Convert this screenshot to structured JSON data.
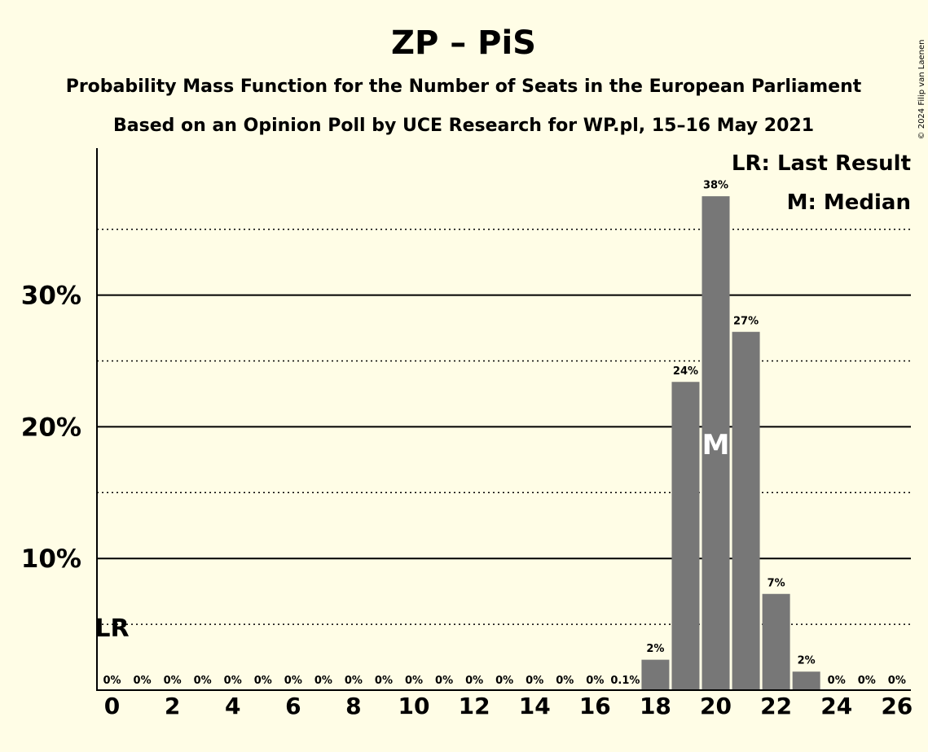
{
  "chart_data": {
    "type": "bar",
    "title": "ZP – PiS",
    "subtitle1": "Probability Mass Function for the Number of Seats in the European Parliament",
    "subtitle2": "Based on an Opinion Poll by UCE Research for WP.pl, 15–16 May 2021",
    "copyright": "© 2024 Filip van Laenen",
    "legend": {
      "lr": "LR: Last Result",
      "median": "M: Median"
    },
    "lr_label": "LR",
    "median_label": "M",
    "last_result_seat": 0,
    "median_seat": 20,
    "categories": [
      0,
      1,
      2,
      3,
      4,
      5,
      6,
      7,
      8,
      9,
      10,
      11,
      12,
      13,
      14,
      15,
      16,
      17,
      18,
      19,
      20,
      21,
      22,
      23,
      24,
      25,
      26
    ],
    "values": [
      0,
      0,
      0,
      0,
      0,
      0,
      0,
      0,
      0,
      0,
      0,
      0,
      0,
      0,
      0,
      0,
      0,
      0.1,
      2.4,
      23.5,
      37.6,
      27.3,
      7.4,
      1.5,
      0,
      0,
      0
    ],
    "value_labels": [
      "0%",
      "0%",
      "0%",
      "0%",
      "0%",
      "0%",
      "0%",
      "0%",
      "0%",
      "0%",
      "0%",
      "0%",
      "0%",
      "0%",
      "0%",
      "0%",
      "0%",
      "0.1%",
      "2%",
      "24%",
      "38%",
      "27%",
      "7%",
      "2%",
      "0%",
      "0%",
      "0%"
    ],
    "xtick_labels": [
      "0",
      "2",
      "4",
      "6",
      "8",
      "10",
      "12",
      "14",
      "16",
      "18",
      "20",
      "22",
      "24",
      "26"
    ],
    "xtick_values": [
      0,
      2,
      4,
      6,
      8,
      10,
      12,
      14,
      16,
      18,
      20,
      22,
      24,
      26
    ],
    "ytick_labels": [
      "10%",
      "20%",
      "30%"
    ],
    "ytick_values": [
      10,
      20,
      30
    ],
    "minor_gridlines": [
      5,
      15,
      25,
      35
    ],
    "ylim": [
      0,
      41
    ],
    "bar_color": "#777777",
    "background": "#FFFDE6"
  }
}
